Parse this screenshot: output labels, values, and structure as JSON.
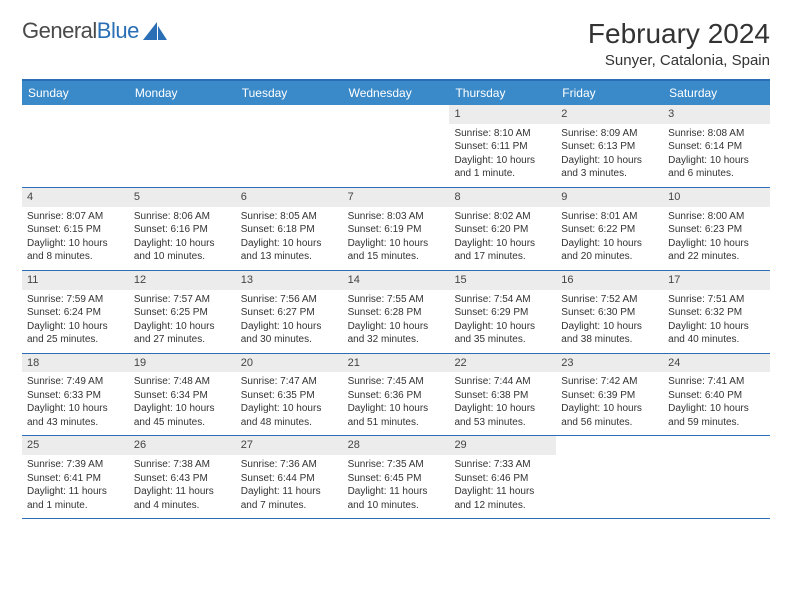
{
  "brand": {
    "name_a": "General",
    "name_b": "Blue"
  },
  "title": "February 2024",
  "location": "Sunyer, Catalonia, Spain",
  "colors": {
    "header_bg": "#3a8ac9",
    "rule": "#2a6fb5",
    "daynum_bg": "#ececec",
    "text": "#333333",
    "bg": "#ffffff"
  },
  "day_names": [
    "Sunday",
    "Monday",
    "Tuesday",
    "Wednesday",
    "Thursday",
    "Friday",
    "Saturday"
  ],
  "weeks": [
    [
      {
        "blank": true
      },
      {
        "blank": true
      },
      {
        "blank": true
      },
      {
        "blank": true
      },
      {
        "n": "1",
        "sr": "Sunrise: 8:10 AM",
        "ss": "Sunset: 6:11 PM",
        "d1": "Daylight: 10 hours",
        "d2": "and 1 minute."
      },
      {
        "n": "2",
        "sr": "Sunrise: 8:09 AM",
        "ss": "Sunset: 6:13 PM",
        "d1": "Daylight: 10 hours",
        "d2": "and 3 minutes."
      },
      {
        "n": "3",
        "sr": "Sunrise: 8:08 AM",
        "ss": "Sunset: 6:14 PM",
        "d1": "Daylight: 10 hours",
        "d2": "and 6 minutes."
      }
    ],
    [
      {
        "n": "4",
        "sr": "Sunrise: 8:07 AM",
        "ss": "Sunset: 6:15 PM",
        "d1": "Daylight: 10 hours",
        "d2": "and 8 minutes."
      },
      {
        "n": "5",
        "sr": "Sunrise: 8:06 AM",
        "ss": "Sunset: 6:16 PM",
        "d1": "Daylight: 10 hours",
        "d2": "and 10 minutes."
      },
      {
        "n": "6",
        "sr": "Sunrise: 8:05 AM",
        "ss": "Sunset: 6:18 PM",
        "d1": "Daylight: 10 hours",
        "d2": "and 13 minutes."
      },
      {
        "n": "7",
        "sr": "Sunrise: 8:03 AM",
        "ss": "Sunset: 6:19 PM",
        "d1": "Daylight: 10 hours",
        "d2": "and 15 minutes."
      },
      {
        "n": "8",
        "sr": "Sunrise: 8:02 AM",
        "ss": "Sunset: 6:20 PM",
        "d1": "Daylight: 10 hours",
        "d2": "and 17 minutes."
      },
      {
        "n": "9",
        "sr": "Sunrise: 8:01 AM",
        "ss": "Sunset: 6:22 PM",
        "d1": "Daylight: 10 hours",
        "d2": "and 20 minutes."
      },
      {
        "n": "10",
        "sr": "Sunrise: 8:00 AM",
        "ss": "Sunset: 6:23 PM",
        "d1": "Daylight: 10 hours",
        "d2": "and 22 minutes."
      }
    ],
    [
      {
        "n": "11",
        "sr": "Sunrise: 7:59 AM",
        "ss": "Sunset: 6:24 PM",
        "d1": "Daylight: 10 hours",
        "d2": "and 25 minutes."
      },
      {
        "n": "12",
        "sr": "Sunrise: 7:57 AM",
        "ss": "Sunset: 6:25 PM",
        "d1": "Daylight: 10 hours",
        "d2": "and 27 minutes."
      },
      {
        "n": "13",
        "sr": "Sunrise: 7:56 AM",
        "ss": "Sunset: 6:27 PM",
        "d1": "Daylight: 10 hours",
        "d2": "and 30 minutes."
      },
      {
        "n": "14",
        "sr": "Sunrise: 7:55 AM",
        "ss": "Sunset: 6:28 PM",
        "d1": "Daylight: 10 hours",
        "d2": "and 32 minutes."
      },
      {
        "n": "15",
        "sr": "Sunrise: 7:54 AM",
        "ss": "Sunset: 6:29 PM",
        "d1": "Daylight: 10 hours",
        "d2": "and 35 minutes."
      },
      {
        "n": "16",
        "sr": "Sunrise: 7:52 AM",
        "ss": "Sunset: 6:30 PM",
        "d1": "Daylight: 10 hours",
        "d2": "and 38 minutes."
      },
      {
        "n": "17",
        "sr": "Sunrise: 7:51 AM",
        "ss": "Sunset: 6:32 PM",
        "d1": "Daylight: 10 hours",
        "d2": "and 40 minutes."
      }
    ],
    [
      {
        "n": "18",
        "sr": "Sunrise: 7:49 AM",
        "ss": "Sunset: 6:33 PM",
        "d1": "Daylight: 10 hours",
        "d2": "and 43 minutes."
      },
      {
        "n": "19",
        "sr": "Sunrise: 7:48 AM",
        "ss": "Sunset: 6:34 PM",
        "d1": "Daylight: 10 hours",
        "d2": "and 45 minutes."
      },
      {
        "n": "20",
        "sr": "Sunrise: 7:47 AM",
        "ss": "Sunset: 6:35 PM",
        "d1": "Daylight: 10 hours",
        "d2": "and 48 minutes."
      },
      {
        "n": "21",
        "sr": "Sunrise: 7:45 AM",
        "ss": "Sunset: 6:36 PM",
        "d1": "Daylight: 10 hours",
        "d2": "and 51 minutes."
      },
      {
        "n": "22",
        "sr": "Sunrise: 7:44 AM",
        "ss": "Sunset: 6:38 PM",
        "d1": "Daylight: 10 hours",
        "d2": "and 53 minutes."
      },
      {
        "n": "23",
        "sr": "Sunrise: 7:42 AM",
        "ss": "Sunset: 6:39 PM",
        "d1": "Daylight: 10 hours",
        "d2": "and 56 minutes."
      },
      {
        "n": "24",
        "sr": "Sunrise: 7:41 AM",
        "ss": "Sunset: 6:40 PM",
        "d1": "Daylight: 10 hours",
        "d2": "and 59 minutes."
      }
    ],
    [
      {
        "n": "25",
        "sr": "Sunrise: 7:39 AM",
        "ss": "Sunset: 6:41 PM",
        "d1": "Daylight: 11 hours",
        "d2": "and 1 minute."
      },
      {
        "n": "26",
        "sr": "Sunrise: 7:38 AM",
        "ss": "Sunset: 6:43 PM",
        "d1": "Daylight: 11 hours",
        "d2": "and 4 minutes."
      },
      {
        "n": "27",
        "sr": "Sunrise: 7:36 AM",
        "ss": "Sunset: 6:44 PM",
        "d1": "Daylight: 11 hours",
        "d2": "and 7 minutes."
      },
      {
        "n": "28",
        "sr": "Sunrise: 7:35 AM",
        "ss": "Sunset: 6:45 PM",
        "d1": "Daylight: 11 hours",
        "d2": "and 10 minutes."
      },
      {
        "n": "29",
        "sr": "Sunrise: 7:33 AM",
        "ss": "Sunset: 6:46 PM",
        "d1": "Daylight: 11 hours",
        "d2": "and 12 minutes."
      },
      {
        "blank": true
      },
      {
        "blank": true
      }
    ]
  ]
}
